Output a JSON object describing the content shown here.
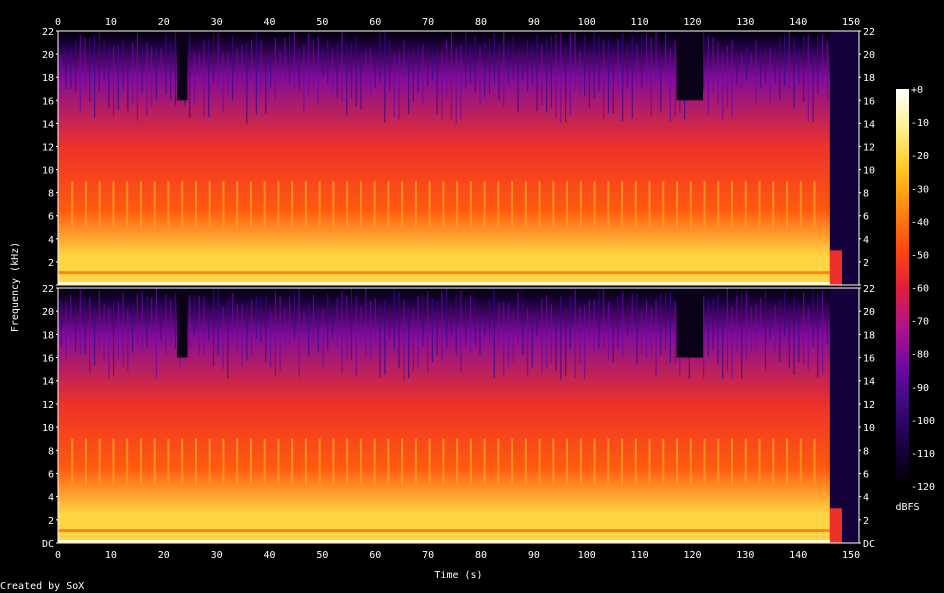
{
  "chart_data": {
    "type": "heatmap",
    "title": "",
    "xlabel": "Time (s)",
    "ylabel": "Frequency (kHz)",
    "xlim": [
      0,
      151.5
    ],
    "ylim": [
      0,
      22
    ],
    "x_ticks": [
      0,
      10,
      20,
      30,
      40,
      50,
      60,
      70,
      80,
      90,
      100,
      110,
      120,
      130,
      140,
      150
    ],
    "y_ticks": [
      "DC",
      "2",
      "4",
      "6",
      "8",
      "10",
      "12",
      "14",
      "16",
      "18",
      "20",
      "22"
    ],
    "channels": 2,
    "colorbar": {
      "label": "dBFS",
      "ticks": [
        "+0",
        "-10",
        "-20",
        "-30",
        "-40",
        "-50",
        "-60",
        "-70",
        "-80",
        "-90",
        "-100",
        "-110",
        "-120"
      ],
      "range": [
        -120,
        0
      ],
      "colors": [
        "#000000",
        "#1a0040",
        "#3a0a7a",
        "#6a0aa0",
        "#b0128a",
        "#e0203a",
        "#ff4a10",
        "#ff8a10",
        "#ffc820",
        "#fff08a",
        "#ffffff"
      ]
    },
    "audio_end_s": 146,
    "quiet_intervals_s": [
      [
        22.5,
        24.5
      ],
      [
        117,
        122
      ]
    ],
    "energy_bands_khz": [
      {
        "from": 0,
        "to": 5,
        "level_dbfs": -20
      },
      {
        "from": 5,
        "to": 8,
        "level_dbfs": -45
      },
      {
        "from": 8,
        "to": 16,
        "level_dbfs": -55
      },
      {
        "from": 16,
        "to": 20,
        "level_dbfs": -80
      },
      {
        "from": 20,
        "to": 22,
        "level_dbfs": -110
      }
    ]
  },
  "footer": {
    "credit": "Created by SoX"
  }
}
